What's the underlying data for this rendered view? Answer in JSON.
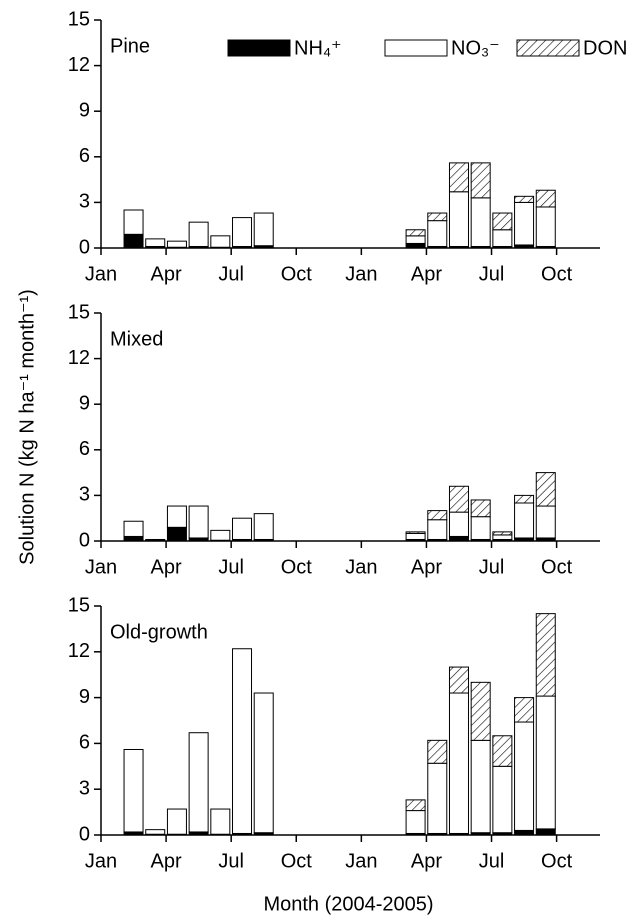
{
  "chart_data": [
    {
      "type": "bar",
      "stacked": true,
      "title": "Pine",
      "x": [
        1.5,
        2.5,
        3.5,
        4.5,
        5.5,
        6.5,
        7.5,
        14.5,
        15.5,
        16.5,
        17.5,
        18.5,
        19.5,
        20.5
      ],
      "series": [
        {
          "name": "NH₄⁺",
          "color": "#000000",
          "values": [
            0.9,
            0.1,
            0.05,
            0.1,
            0.05,
            0.1,
            0.15,
            0.3,
            0.1,
            0.1,
            0.1,
            0.1,
            0.2,
            0.1
          ]
        },
        {
          "name": "NO₃⁻",
          "color": "#ffffff",
          "values": [
            1.6,
            0.5,
            0.4,
            1.6,
            0.75,
            1.9,
            2.15,
            0.5,
            1.7,
            3.6,
            3.2,
            1.1,
            2.8,
            2.6
          ]
        },
        {
          "name": "DON",
          "color": "#ffffff",
          "hatch": true,
          "values": [
            0,
            0,
            0,
            0,
            0,
            0,
            0,
            0.4,
            0.5,
            1.9,
            2.3,
            1.1,
            0.4,
            1.1
          ]
        }
      ],
      "legend": "top",
      "xlim": [
        0,
        23
      ],
      "xticks": [
        {
          "value": 0,
          "label": "Jan"
        },
        {
          "value": 3,
          "label": "Apr"
        },
        {
          "value": 6,
          "label": "Jul"
        },
        {
          "value": 9,
          "label": "Oct"
        },
        {
          "value": 12,
          "label": "Jan"
        },
        {
          "value": 15,
          "label": "Apr"
        },
        {
          "value": 18,
          "label": "Jul"
        },
        {
          "value": 21,
          "label": "Oct"
        }
      ],
      "ylim": [
        0,
        15
      ],
      "yticks": [
        0,
        3,
        6,
        9,
        12,
        15
      ]
    },
    {
      "type": "bar",
      "stacked": true,
      "title": "Mixed",
      "ylabel": "Solution N (kg N ha⁻¹ month⁻¹)",
      "x": [
        1.5,
        2.5,
        3.5,
        4.5,
        5.5,
        6.5,
        7.5,
        14.5,
        15.5,
        16.5,
        17.5,
        18.5,
        19.5,
        20.5
      ],
      "series": [
        {
          "color": "#000000",
          "values": [
            0.3,
            0.05,
            0.9,
            0.2,
            0.05,
            0.1,
            0.1,
            0.1,
            0.1,
            0.3,
            0.1,
            0.1,
            0.2,
            0.2
          ]
        },
        {
          "color": "#ffffff",
          "values": [
            1.0,
            0.05,
            1.4,
            2.1,
            0.65,
            1.4,
            1.7,
            0.4,
            1.3,
            1.6,
            1.5,
            0.3,
            2.3,
            2.1
          ]
        },
        {
          "color": "#ffffff",
          "hatch": true,
          "values": [
            0,
            0,
            0,
            0,
            0,
            0,
            0,
            0.1,
            0.6,
            1.7,
            1.1,
            0.2,
            0.5,
            2.2
          ]
        }
      ],
      "xlim": [
        0,
        23
      ],
      "xticks": [
        {
          "value": 0,
          "label": "Jan"
        },
        {
          "value": 3,
          "label": "Apr"
        },
        {
          "value": 6,
          "label": "Jul"
        },
        {
          "value": 9,
          "label": "Oct"
        },
        {
          "value": 12,
          "label": "Jan"
        },
        {
          "value": 15,
          "label": "Apr"
        },
        {
          "value": 18,
          "label": "Jul"
        },
        {
          "value": 21,
          "label": "Oct"
        }
      ],
      "ylim": [
        0,
        15
      ],
      "yticks": [
        0,
        3,
        6,
        9,
        12,
        15
      ]
    },
    {
      "type": "bar",
      "stacked": true,
      "title": "Old-growth",
      "xlabel": "Month (2004-2005)",
      "x": [
        1.5,
        2.5,
        3.5,
        4.5,
        5.5,
        6.5,
        7.5,
        14.5,
        15.5,
        16.5,
        17.5,
        18.5,
        19.5,
        20.5
      ],
      "series": [
        {
          "color": "#000000",
          "values": [
            0.2,
            0.05,
            0.05,
            0.2,
            0.05,
            0.1,
            0.15,
            0.1,
            0.1,
            0.1,
            0.15,
            0.15,
            0.3,
            0.4
          ]
        },
        {
          "color": "#ffffff",
          "values": [
            5.4,
            0.3,
            1.65,
            6.5,
            1.65,
            12.1,
            9.15,
            1.5,
            4.6,
            9.2,
            6.05,
            4.35,
            7.1,
            8.7
          ]
        },
        {
          "color": "#ffffff",
          "hatch": true,
          "values": [
            0,
            0,
            0,
            0,
            0,
            0,
            0,
            0.7,
            1.5,
            1.7,
            3.8,
            2.0,
            1.6,
            5.4
          ]
        }
      ],
      "xlim": [
        0,
        23
      ],
      "xticks": [
        {
          "value": 0,
          "label": "Jan"
        },
        {
          "value": 3,
          "label": "Apr"
        },
        {
          "value": 6,
          "label": "Jul"
        },
        {
          "value": 9,
          "label": "Oct"
        },
        {
          "value": 12,
          "label": "Jan"
        },
        {
          "value": 15,
          "label": "Apr"
        },
        {
          "value": 18,
          "label": "Jul"
        },
        {
          "value": 21,
          "label": "Oct"
        }
      ],
      "ylim": [
        0,
        15
      ],
      "yticks": [
        0,
        3,
        6,
        9,
        12,
        15
      ]
    }
  ]
}
